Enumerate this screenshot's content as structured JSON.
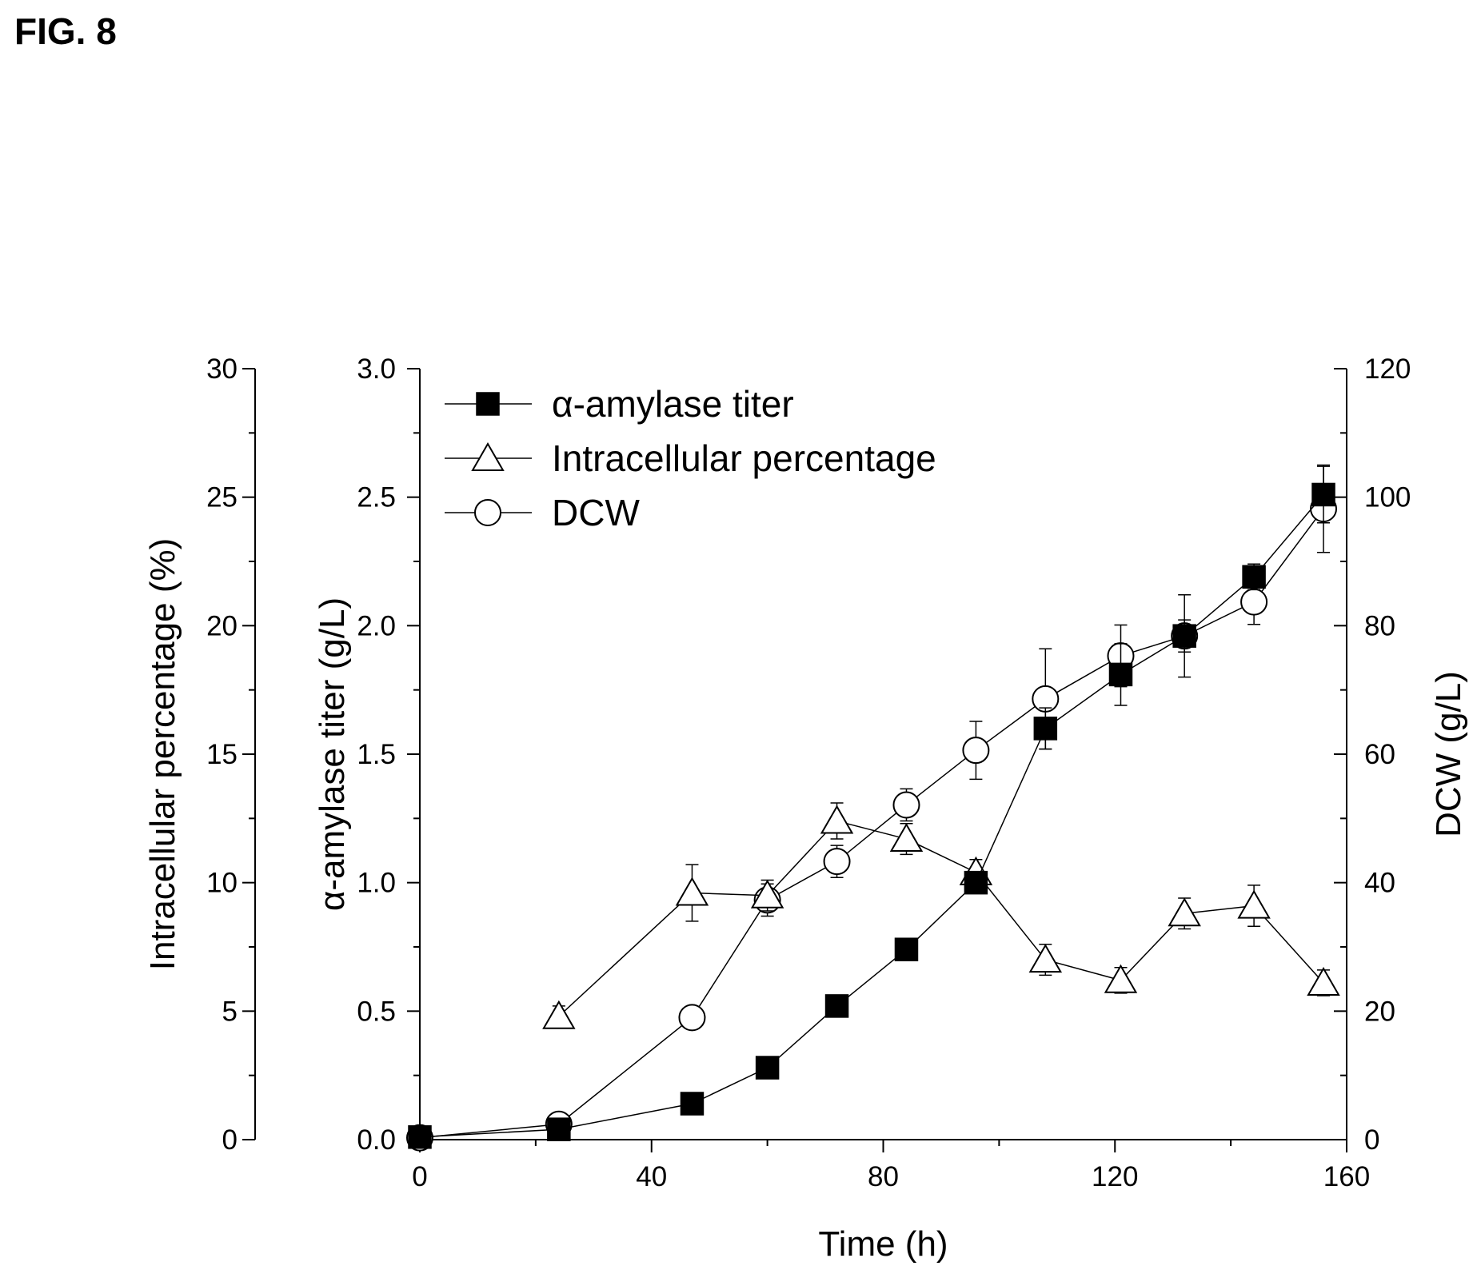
{
  "figure_label": "FIG. 8",
  "chart_data": {
    "type": "line",
    "title": "",
    "xlabel": "Time (h)",
    "xlim": [
      0,
      160
    ],
    "x_ticks": [
      "0",
      "40",
      "80",
      "120",
      "160"
    ],
    "axes": {
      "left_outer": {
        "label": "Intracellular percentage (%)",
        "lim": [
          0,
          30
        ],
        "ticks": [
          "0",
          "5",
          "10",
          "15",
          "20",
          "25",
          "30"
        ]
      },
      "left_inner": {
        "label": "α-amylase titer (g/L)",
        "lim": [
          0,
          3.0
        ],
        "ticks": [
          "0.0",
          "0.5",
          "1.0",
          "1.5",
          "2.0",
          "2.5",
          "3.0"
        ]
      },
      "right": {
        "label": "DCW (g/L)",
        "lim": [
          0,
          120
        ],
        "ticks": [
          "0",
          "20",
          "40",
          "60",
          "80",
          "100",
          "120"
        ]
      }
    },
    "legend_position": "top-left",
    "series": [
      {
        "name": "α-amylase titer",
        "axis": "left_inner",
        "marker": "filled-square",
        "points": [
          {
            "x": 0,
            "y": 0.01,
            "err": 0
          },
          {
            "x": 24,
            "y": 0.04,
            "err": 0
          },
          {
            "x": 47,
            "y": 0.14,
            "err": 0
          },
          {
            "x": 60,
            "y": 0.28,
            "err": 0
          },
          {
            "x": 72,
            "y": 0.52,
            "err": 0
          },
          {
            "x": 84,
            "y": 0.74,
            "err": 0
          },
          {
            "x": 96,
            "y": 1.0,
            "err": 0.03
          },
          {
            "x": 108,
            "y": 1.6,
            "err": 0.08
          },
          {
            "x": 121,
            "y": 1.81,
            "err": 0.12
          },
          {
            "x": 132,
            "y": 1.96,
            "err": 0.16
          },
          {
            "x": 144,
            "y": 2.19,
            "err": 0.05
          },
          {
            "x": 156,
            "y": 2.51,
            "err": 0.11
          }
        ]
      },
      {
        "name": "Intracellular percentage",
        "axis": "left_outer",
        "marker": "open-triangle",
        "points": [
          {
            "x": 24,
            "y": 4.8,
            "err": 0.4
          },
          {
            "x": 47,
            "y": 9.6,
            "err": 1.1
          },
          {
            "x": 60,
            "y": 9.5,
            "err": 0.6
          },
          {
            "x": 72,
            "y": 12.4,
            "err": 0.7
          },
          {
            "x": 84,
            "y": 11.7,
            "err": 0.6
          },
          {
            "x": 96,
            "y": 10.4,
            "err": 0.5
          },
          {
            "x": 108,
            "y": 7.0,
            "err": 0.6
          },
          {
            "x": 121,
            "y": 6.2,
            "err": 0.5
          },
          {
            "x": 132,
            "y": 8.8,
            "err": 0.6
          },
          {
            "x": 144,
            "y": 9.1,
            "err": 0.8
          },
          {
            "x": 156,
            "y": 6.1,
            "err": 0.5
          }
        ]
      },
      {
        "name": "DCW",
        "axis": "right",
        "marker": "open-circle",
        "points": [
          {
            "x": 0,
            "y": 0.3,
            "err": 0
          },
          {
            "x": 24,
            "y": 2.4,
            "err": 0.5
          },
          {
            "x": 47,
            "y": 19.0,
            "err": 1.2
          },
          {
            "x": 60,
            "y": 37.3,
            "err": 2.5
          },
          {
            "x": 72,
            "y": 43.3,
            "err": 2.5
          },
          {
            "x": 84,
            "y": 52.1,
            "err": 2.5
          },
          {
            "x": 96,
            "y": 60.6,
            "err": 4.5
          },
          {
            "x": 108,
            "y": 68.6,
            "err": 7.8
          },
          {
            "x": 121,
            "y": 75.3,
            "err": 4.8
          },
          {
            "x": 132,
            "y": 78.4,
            "err": 2.5
          },
          {
            "x": 144,
            "y": 83.7,
            "err": 3.5
          },
          {
            "x": 156,
            "y": 98.2,
            "err": 6.8
          }
        ]
      }
    ]
  }
}
